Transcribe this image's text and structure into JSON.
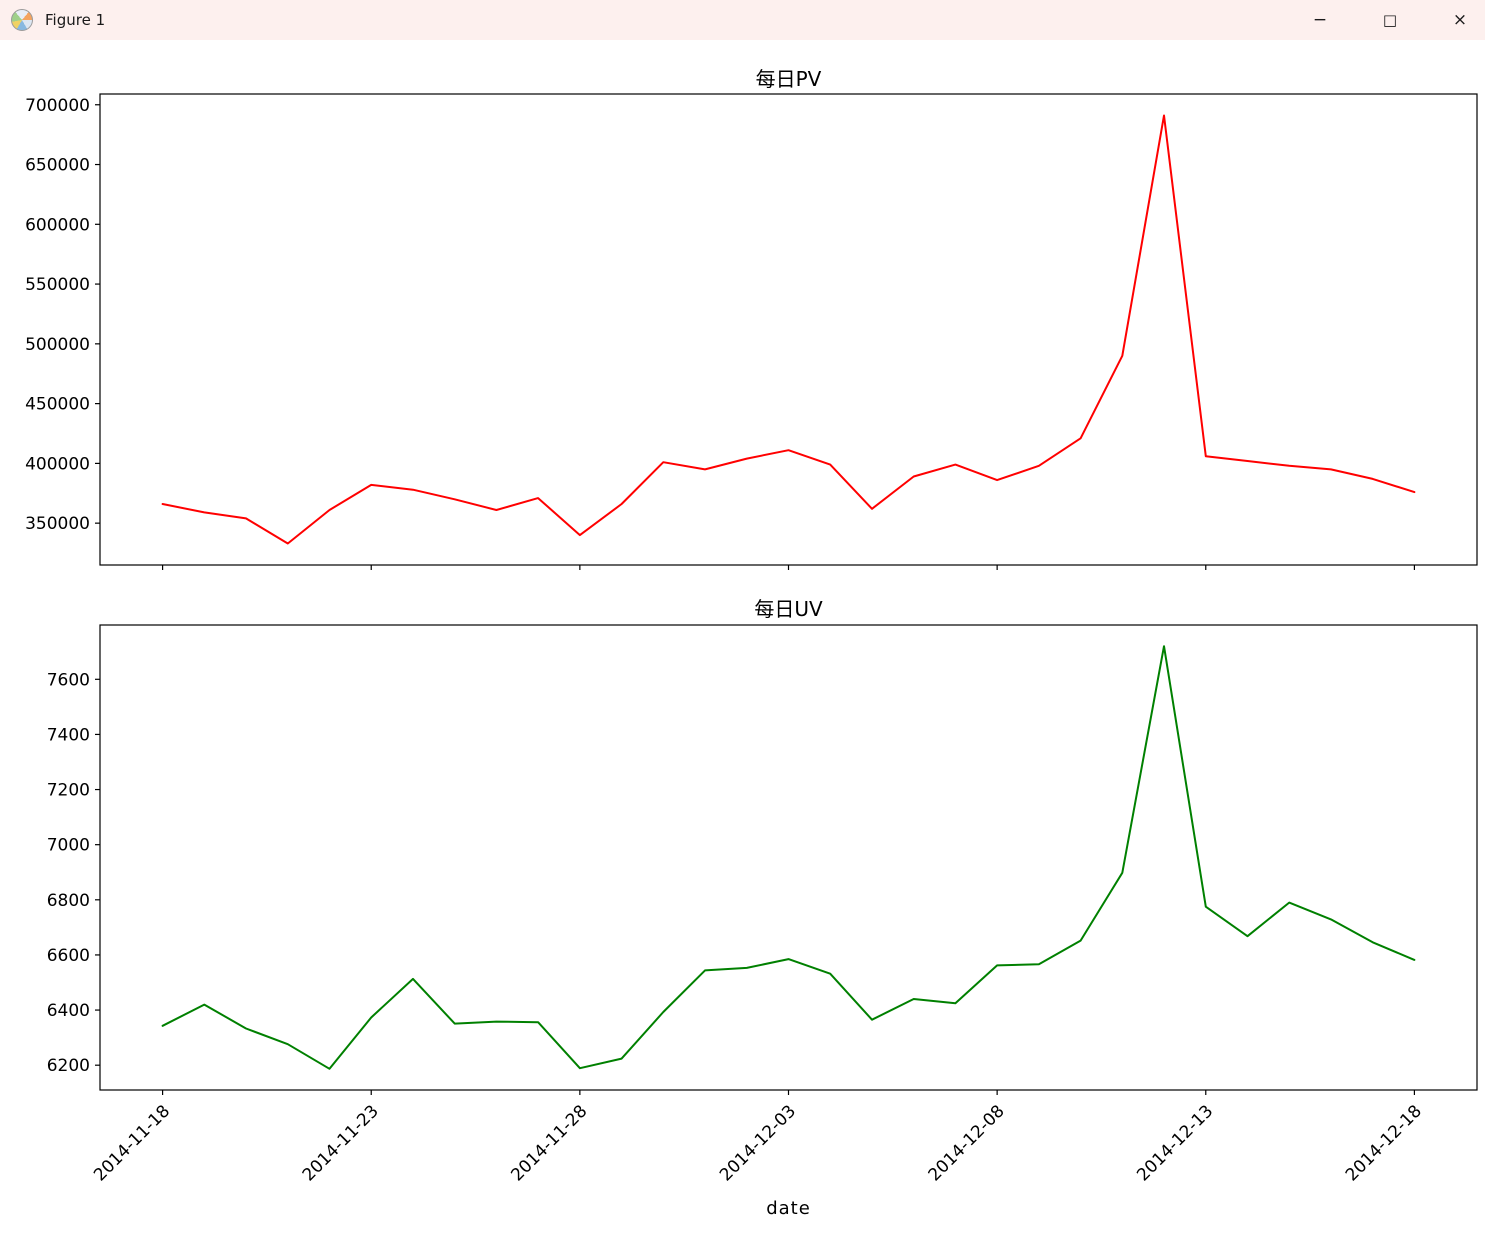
{
  "window": {
    "title": "Figure 1",
    "icon": "matplotlib-logo-icon",
    "controls": {
      "minimize": "−",
      "maximize": "□",
      "close": "×"
    }
  },
  "chart_data": [
    {
      "type": "line",
      "title": "每日PV",
      "series_name": "pv",
      "color": "#ff0000",
      "grid": false,
      "legend": "none",
      "x": [
        "2014-11-18",
        "2014-11-19",
        "2014-11-20",
        "2014-11-21",
        "2014-11-22",
        "2014-11-23",
        "2014-11-24",
        "2014-11-25",
        "2014-11-26",
        "2014-11-27",
        "2014-11-28",
        "2014-11-29",
        "2014-11-30",
        "2014-12-01",
        "2014-12-02",
        "2014-12-03",
        "2014-12-04",
        "2014-12-05",
        "2014-12-06",
        "2014-12-07",
        "2014-12-08",
        "2014-12-09",
        "2014-12-10",
        "2014-12-11",
        "2014-12-12",
        "2014-12-13",
        "2014-12-14",
        "2014-12-15",
        "2014-12-16",
        "2014-12-17",
        "2014-12-18"
      ],
      "values": [
        366000,
        359000,
        354000,
        333000,
        361000,
        382000,
        378000,
        370000,
        361000,
        371000,
        340000,
        366000,
        401000,
        395000,
        404000,
        411000,
        399000,
        362000,
        389000,
        399000,
        386000,
        398000,
        421000,
        490000,
        691000,
        406000,
        402000,
        398000,
        395000,
        387000,
        376000
      ],
      "ylim": [
        315000,
        709000
      ],
      "yticks": [
        350000,
        400000,
        450000,
        500000,
        550000,
        600000,
        650000,
        700000
      ],
      "xlim": [
        -1.5,
        31.5
      ],
      "xticks": [
        0,
        5,
        10,
        15,
        20,
        25,
        30
      ],
      "xtick_labels": [
        "2014-11-18",
        "2014-11-23",
        "2014-11-28",
        "2014-12-03",
        "2014-12-08",
        "2014-12-13",
        "2014-12-18"
      ],
      "xlabel": ""
    },
    {
      "type": "line",
      "title": "每日UV",
      "series_name": "uv",
      "color": "#008000",
      "grid": false,
      "legend": "none",
      "x": [
        "2014-11-18",
        "2014-11-19",
        "2014-11-20",
        "2014-11-21",
        "2014-11-22",
        "2014-11-23",
        "2014-11-24",
        "2014-11-25",
        "2014-11-26",
        "2014-11-27",
        "2014-11-28",
        "2014-11-29",
        "2014-11-30",
        "2014-12-01",
        "2014-12-02",
        "2014-12-03",
        "2014-12-04",
        "2014-12-05",
        "2014-12-06",
        "2014-12-07",
        "2014-12-08",
        "2014-12-09",
        "2014-12-10",
        "2014-12-11",
        "2014-12-12",
        "2014-12-13",
        "2014-12-14",
        "2014-12-15",
        "2014-12-16",
        "2014-12-17",
        "2014-12-18"
      ],
      "values": [
        6343,
        6420,
        6333,
        6276,
        6187,
        6373,
        6513,
        6351,
        6358,
        6356,
        6189,
        6224,
        6393,
        6544,
        6553,
        6585,
        6532,
        6365,
        6440,
        6425,
        6562,
        6566,
        6652,
        6898,
        7720,
        6775,
        6668,
        6790,
        6729,
        6646,
        6582
      ],
      "ylim": [
        6110,
        7797
      ],
      "yticks": [
        6200,
        6400,
        6600,
        6800,
        7000,
        7200,
        7400,
        7600
      ],
      "xlim": [
        -1.5,
        31.5
      ],
      "xticks": [
        0,
        5,
        10,
        15,
        20,
        25,
        30
      ],
      "xtick_labels": [
        "2014-11-18",
        "2014-11-23",
        "2014-11-28",
        "2014-12-03",
        "2014-12-08",
        "2014-12-13",
        "2014-12-18"
      ],
      "xlabel": "date"
    }
  ]
}
